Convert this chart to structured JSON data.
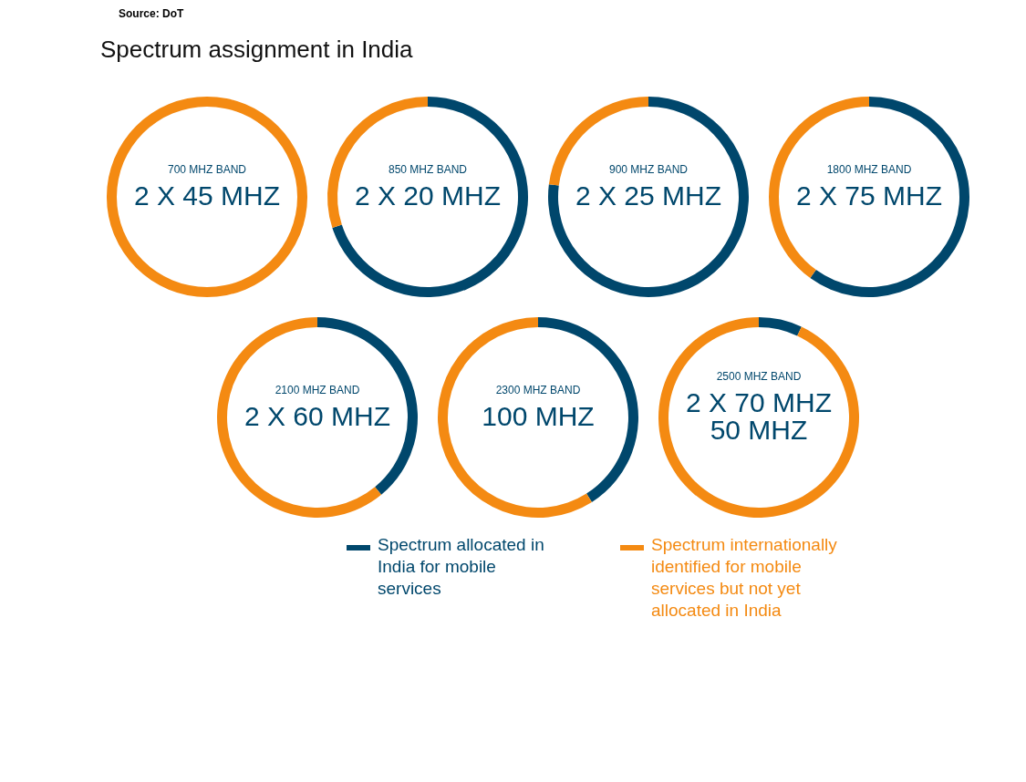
{
  "chart_data": [
    {
      "type": "other",
      "title": "Spectrum assignment in India",
      "annotations": [
        "Source: DoT"
      ]
    },
    {
      "type": "donut",
      "title": "700 MHZ BAND",
      "annotations": [
        "2 X 45 MHZ"
      ],
      "categories": [
        null,
        null
      ],
      "values": [
        0,
        100
      ],
      "colors": [
        "#00476c",
        "#f48a12"
      ]
    },
    {
      "type": "donut",
      "title": "850 MHZ BAND",
      "annotations": [
        "2 X 20 MHZ"
      ],
      "categories": [
        null,
        null
      ],
      "values": [
        70,
        30
      ],
      "colors": [
        "#00476c",
        "#f48a12"
      ]
    },
    {
      "type": "donut",
      "title": "900 MHZ BAND",
      "annotations": [
        "2 X 25 MHZ"
      ],
      "categories": [
        null,
        null
      ],
      "values": [
        77,
        23
      ],
      "colors": [
        "#00476c",
        "#f48a12"
      ]
    },
    {
      "type": "donut",
      "title": "1800 MHZ BAND",
      "annotations": [
        "2 X 75 MHZ"
      ],
      "categories": [
        null,
        null
      ],
      "values": [
        60,
        40
      ],
      "colors": [
        "#00476c",
        "#f48a12"
      ]
    },
    {
      "type": "donut",
      "title": "2100 MHZ BAND",
      "annotations": [
        "2 X 60 MHZ"
      ],
      "categories": [
        null,
        null
      ],
      "values": [
        39,
        61
      ],
      "colors": [
        "#00476c",
        "#f48a12"
      ]
    },
    {
      "type": "donut",
      "title": "2300 MHZ BAND",
      "annotations": [
        "100 MHZ"
      ],
      "categories": [
        null,
        null
      ],
      "values": [
        41,
        59
      ],
      "colors": [
        "#00476c",
        "#f48a12"
      ]
    },
    {
      "type": "donut",
      "title": "2500 MHZ BAND",
      "annotations": [
        "2 X 70 MHZ",
        "50 MHZ"
      ],
      "categories": [
        "Spectrum allocated in India for mobile services",
        "Spectrum internationally identified for mobile services but not yet allocated in India"
      ],
      "values": [
        7,
        93
      ],
      "colors": [
        "#00476c",
        "#f48a12"
      ],
      "legend": "bottom"
    }
  ]
}
